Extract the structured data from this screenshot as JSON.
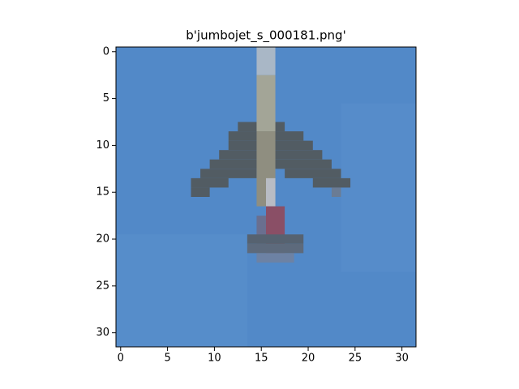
{
  "chart_data": {
    "type": "image",
    "title": "b'jumbojet_s_000181.png'",
    "xlim": [
      -0.5,
      31.5
    ],
    "ylim": [
      31.5,
      -0.5
    ],
    "xticks": [
      0,
      5,
      10,
      15,
      20,
      25,
      30
    ],
    "yticks": [
      0,
      5,
      10,
      15,
      20,
      25,
      30
    ]
  }
}
